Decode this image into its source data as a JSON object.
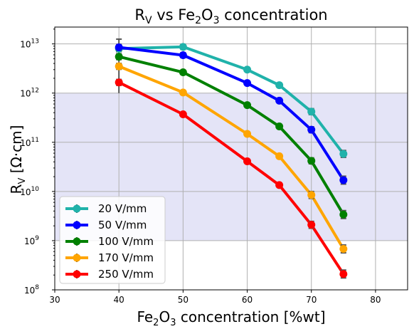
{
  "chart_data": {
    "type": "line",
    "title": {
      "main": "R",
      "sub": "V",
      "rest": " vs Fe",
      "sub2": "2",
      "mid": "O",
      "sub3": "3",
      "tail": " concentration"
    },
    "xlabel": {
      "a": "Fe",
      "sub1": "2",
      "b": "O",
      "sub2": "3",
      "c": " concentration [%wt]"
    },
    "ylabel": {
      "a": "R",
      "sub": "V",
      "c": " [Ω·cm]"
    },
    "xlim": [
      30,
      85
    ],
    "ylim": [
      100000000.0,
      22000000000000.0
    ],
    "yscale": "log",
    "x_ticks": [
      30,
      40,
      50,
      60,
      70,
      80
    ],
    "y_ticks": [
      {
        "value": 100000000.0,
        "base": "10",
        "exp": "8"
      },
      {
        "value": 1000000000.0,
        "base": "10",
        "exp": "9"
      },
      {
        "value": 10000000000.0,
        "base": "10",
        "exp": "10"
      },
      {
        "value": 100000000000.0,
        "base": "10",
        "exp": "11"
      },
      {
        "value": 1000000000000.0,
        "base": "10",
        "exp": "12"
      },
      {
        "value": 10000000000000.0,
        "base": "10",
        "exp": "13"
      }
    ],
    "grid": true,
    "shaded_band": {
      "y_from": 1000000000.0,
      "y_to": 1000000000000.0,
      "color": "#e4e4f7"
    },
    "legend_position": "lower-left",
    "series": [
      {
        "name": "20 V/mm",
        "color": "#20b2aa",
        "x": [
          40,
          50,
          60,
          65,
          70,
          75
        ],
        "y": [
          8000000000000.0,
          8700000000000.0,
          3000000000000.0,
          1450000000000.0,
          420000000000.0,
          58000000000.0
        ],
        "err": [
          0.06,
          0.05,
          0.04,
          0.04,
          0.06,
          0.07
        ]
      },
      {
        "name": "50 V/mm",
        "color": "#0000ff",
        "x": [
          40,
          50,
          60,
          65,
          70,
          75
        ],
        "y": [
          8500000000000.0,
          5900000000000.0,
          1600000000000.0,
          700000000000.0,
          180000000000.0,
          17000000000.0
        ],
        "err": [
          0.06,
          0.05,
          0.04,
          0.04,
          0.06,
          0.08
        ]
      },
      {
        "name": "100 V/mm",
        "color": "#008000",
        "x": [
          40,
          50,
          60,
          65,
          70,
          75
        ],
        "y": [
          5500000000000.0,
          2650000000000.0,
          570000000000.0,
          210000000000.0,
          42000000000.0,
          3400000000.0
        ],
        "err": [
          0.06,
          0.04,
          0.04,
          0.04,
          0.06,
          0.08
        ]
      },
      {
        "name": "170 V/mm",
        "color": "#ffa500",
        "x": [
          40,
          50,
          60,
          65,
          70,
          75
        ],
        "y": [
          3500000000000.0,
          1030000000000.0,
          148000000000.0,
          52000000000.0,
          8500000000.0,
          680000000.0
        ],
        "err": [
          0.06,
          0.04,
          0.04,
          0.04,
          0.07,
          0.08
        ]
      },
      {
        "name": "250 V/mm",
        "color": "#ff0000",
        "x": [
          40,
          50,
          60,
          65,
          70,
          75
        ],
        "y": [
          1650000000000.0,
          370000000000.0,
          41000000000.0,
          13500000000.0,
          2100000000.0,
          210000000.0
        ],
        "err": [
          0.06,
          0.04,
          0.04,
          0.04,
          0.07,
          0.08
        ]
      }
    ],
    "big_error_bar": {
      "x": 40,
      "y_from": 1000000000000.0,
      "y_to": 12500000000000.0,
      "color": "#555555"
    }
  }
}
